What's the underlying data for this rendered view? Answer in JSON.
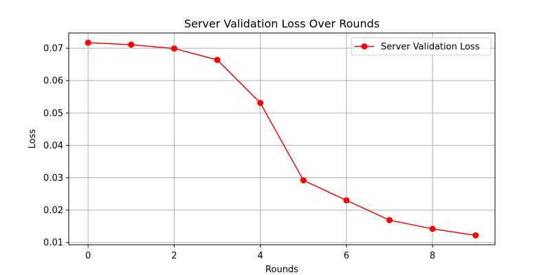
{
  "chart_data": {
    "type": "line",
    "title": "Server Validation Loss Over Rounds",
    "xlabel": "Rounds",
    "ylabel": "Loss",
    "xlim": [
      -0.45,
      9.45
    ],
    "ylim": [
      0.0093,
      0.0747
    ],
    "xticks": [
      0,
      2,
      4,
      6,
      8
    ],
    "xtick_labels": [
      "0",
      "2",
      "4",
      "6",
      "8"
    ],
    "yticks": [
      0.01,
      0.02,
      0.03,
      0.04,
      0.05,
      0.06,
      0.07
    ],
    "ytick_labels": [
      "0.01",
      "0.02",
      "0.03",
      "0.04",
      "0.05",
      "0.06",
      "0.07"
    ],
    "grid": true,
    "legend_position": "top-right",
    "x": [
      0,
      1,
      2,
      3,
      4,
      5,
      6,
      7,
      8,
      9
    ],
    "series": [
      {
        "name": "Server Validation Loss",
        "color": "#ff0000",
        "marker": "circle",
        "values": [
          0.0717,
          0.0711,
          0.0699,
          0.0664,
          0.0531,
          0.0292,
          0.023,
          0.0169,
          0.0142,
          0.0122
        ]
      }
    ]
  }
}
